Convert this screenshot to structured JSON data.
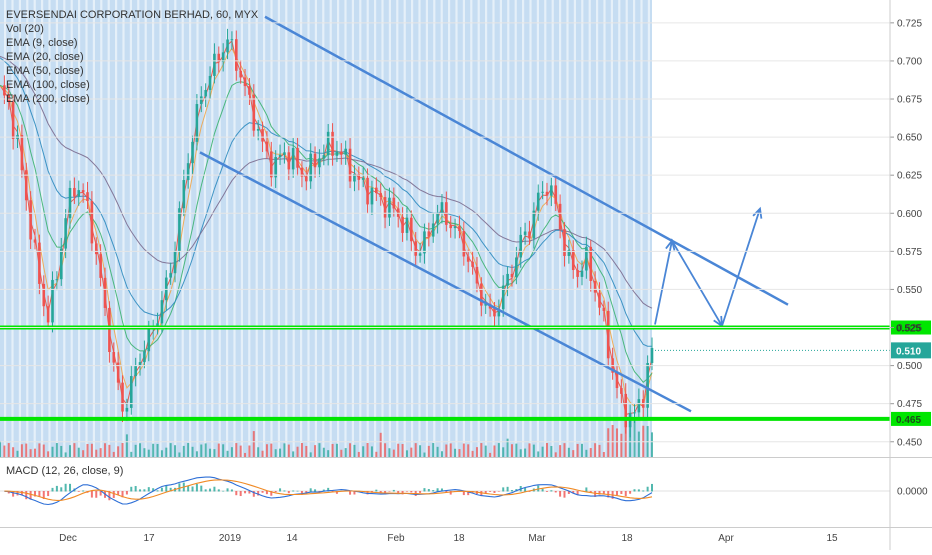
{
  "chart_data": {
    "type": "candlestick",
    "title": "EVERSENDAI CORPORATION BERHAD, 60, MYX",
    "indicators": [
      "Vol (20)",
      "EMA (9, close)",
      "EMA (20, close)",
      "EMA (50, close)",
      "EMA (100, close)",
      "EMA (200, close)"
    ],
    "macd_label": "MACD (12, 26, close, 9)",
    "macd_tick": "0.0000",
    "y_ticks": [
      "0.725",
      "0.700",
      "0.675",
      "0.650",
      "0.625",
      "0.600",
      "0.575",
      "0.550",
      "0.525",
      "0.500",
      "0.475",
      "0.450"
    ],
    "y_tick_values": [
      0.725,
      0.7,
      0.675,
      0.65,
      0.625,
      0.6,
      0.575,
      0.55,
      0.525,
      0.5,
      0.475,
      0.45
    ],
    "ylim": [
      0.44,
      0.74
    ],
    "x_ticks": [
      "Dec",
      "17",
      "2019",
      "14",
      "Feb",
      "18",
      "Mar",
      "18",
      "Apr",
      "15"
    ],
    "close_price": {
      "label": "0.510",
      "value": 0.51
    },
    "support_levels": [
      {
        "label": "0.525",
        "value": 0.525
      },
      {
        "label": "0.465",
        "value": 0.465
      }
    ],
    "price_series": [
      0.68,
      0.67,
      0.64,
      0.6,
      0.56,
      0.53,
      0.56,
      0.6,
      0.62,
      0.61,
      0.58,
      0.54,
      0.5,
      0.47,
      0.49,
      0.51,
      0.52,
      0.54,
      0.56,
      0.6,
      0.64,
      0.67,
      0.69,
      0.7,
      0.715,
      0.7,
      0.68,
      0.66,
      0.64,
      0.63,
      0.64,
      0.635,
      0.625,
      0.63,
      0.64,
      0.645,
      0.64,
      0.63,
      0.62,
      0.615,
      0.61,
      0.605,
      0.6,
      0.59,
      0.575,
      0.58,
      0.6,
      0.6,
      0.59,
      0.58,
      0.56,
      0.545,
      0.53,
      0.545,
      0.56,
      0.58,
      0.59,
      0.61,
      0.62,
      0.6,
      0.57,
      0.56,
      0.57,
      0.55,
      0.525,
      0.49,
      0.47,
      0.465,
      0.48,
      0.51
    ],
    "price_x_range": [
      0,
      652
    ],
    "colors": {
      "panel_bg": "#c6ddf2",
      "up": "#26a69a",
      "down": "#ef5350",
      "channel": "#4a86d6",
      "support": "#00e600",
      "close_tag": "#26a69a",
      "ema": [
        "#e94c3d",
        "#f0a54a",
        "#3cb371",
        "#2e8bbf",
        "#7b6b8f"
      ]
    }
  }
}
